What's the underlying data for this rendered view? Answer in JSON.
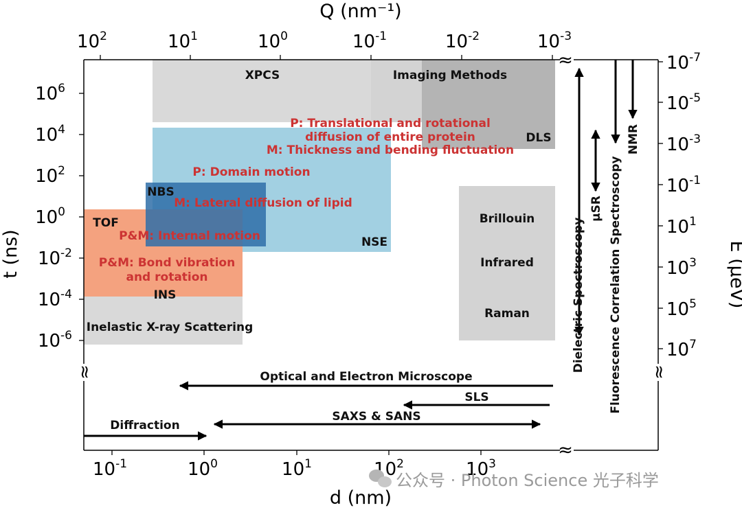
{
  "chart_data": {
    "type": "region-map",
    "axes": {
      "left": {
        "title": "t (ns)",
        "scale": "log",
        "ticks": [
          {
            "base": "10",
            "exp": "6"
          },
          {
            "base": "10",
            "exp": "4"
          },
          {
            "base": "10",
            "exp": "2"
          },
          {
            "base": "10",
            "exp": "0"
          },
          {
            "base": "10",
            "exp": "-2"
          },
          {
            "base": "10",
            "exp": "-4"
          },
          {
            "base": "10",
            "exp": "-6"
          }
        ]
      },
      "right": {
        "title": "E (μeV)",
        "scale": "log",
        "ticks": [
          {
            "base": "10",
            "exp": "-7"
          },
          {
            "base": "10",
            "exp": "-5"
          },
          {
            "base": "10",
            "exp": "-3"
          },
          {
            "base": "10",
            "exp": "-1"
          },
          {
            "base": "10",
            "exp": "1"
          },
          {
            "base": "10",
            "exp": "3"
          },
          {
            "base": "10",
            "exp": "5"
          },
          {
            "base": "10",
            "exp": "7"
          }
        ]
      },
      "top": {
        "title": "Q (nm⁻¹)",
        "scale": "log",
        "ticks": [
          {
            "base": "10",
            "exp": "2"
          },
          {
            "base": "10",
            "exp": "1"
          },
          {
            "base": "10",
            "exp": "0"
          },
          {
            "base": "10",
            "exp": "-1"
          },
          {
            "base": "10",
            "exp": "-2"
          },
          {
            "base": "10",
            "exp": "-3"
          }
        ]
      },
      "bottom": {
        "title": "d (nm)",
        "scale": "log",
        "ticks": [
          {
            "base": "10",
            "exp": "-1"
          },
          {
            "base": "10",
            "exp": "0"
          },
          {
            "base": "10",
            "exp": "1"
          },
          {
            "base": "10",
            "exp": "2"
          },
          {
            "base": "10",
            "exp": "3"
          }
        ]
      }
    },
    "regions": [
      {
        "id": "xpcs",
        "label": "XPCS",
        "color": "#d9d9d9"
      },
      {
        "id": "imaging",
        "label": "Imaging Methods",
        "color": "#d3d3d3"
      },
      {
        "id": "dls",
        "label": "DLS",
        "color": "#b4b4b4"
      },
      {
        "id": "nse",
        "label": "NSE",
        "color": "#9dcde0"
      },
      {
        "id": "nbs",
        "label": "NBS",
        "color": "#3c7bb0"
      },
      {
        "id": "tof",
        "label": "TOF",
        "color": "#f4a27f"
      },
      {
        "id": "ins",
        "label": "INS",
        "color": "#f4a27f"
      },
      {
        "id": "ixs",
        "label": "Inelastic X-ray Scattering",
        "color": "#d9d9d9"
      },
      {
        "id": "optical",
        "labels": [
          "Brillouin",
          "Infrared",
          "Raman"
        ],
        "color": "#d3d3d3"
      }
    ],
    "annotations": [
      "P: Translational and rotational",
      "diffusion of entire protein",
      "M: Thickness and bending fluctuation",
      "P: Domain motion",
      "M: Lateral diffusion of lipid",
      "P&M: Internal motion",
      "P&M: Bond vibration",
      "and rotation"
    ],
    "arrows": [
      {
        "label": "Optical and Electron Microscope",
        "direction": "left"
      },
      {
        "label": "SLS",
        "direction": "left"
      },
      {
        "label": "SAXS & SANS",
        "direction": "both"
      },
      {
        "label": "Diffraction",
        "direction": "right"
      },
      {
        "label": "Dielectric Spectroscopy",
        "direction": "both"
      },
      {
        "label": "μSR",
        "direction": "both"
      },
      {
        "label": "Fluorescence Correlation Spectroscopy",
        "direction": "down"
      },
      {
        "label": "NMR",
        "direction": "down"
      }
    ],
    "break_marks": "≈"
  },
  "watermark": "公众号 · Photon Science 光子科学"
}
